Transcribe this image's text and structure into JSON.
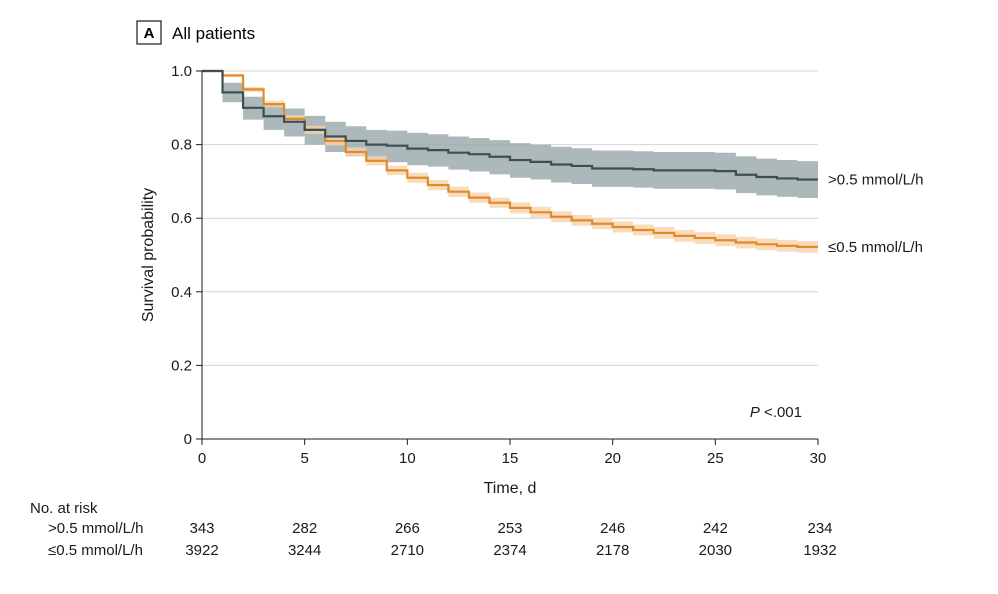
{
  "panel": {
    "letter": "A",
    "title": "All patients"
  },
  "chart_data": {
    "type": "line",
    "subtype": "kaplan-meier step",
    "xlabel": "Time, d",
    "ylabel": "Survival probability",
    "xlim": [
      0,
      30
    ],
    "ylim": [
      0,
      1.0
    ],
    "x_ticks": [
      0,
      5,
      10,
      15,
      20,
      25,
      30
    ],
    "x_tick_labels": [
      "0",
      "5",
      "10",
      "15",
      "20",
      "25",
      "30"
    ],
    "y_ticks": [
      0,
      0.2,
      0.4,
      0.6,
      0.8,
      1.0
    ],
    "y_tick_labels": [
      "0",
      "0.2",
      "0.4",
      "0.6",
      "0.8",
      "1.0"
    ],
    "grid": "horizontal",
    "annotation": {
      "italic": "P",
      "rest": " <.001"
    },
    "series": [
      {
        "name": ">0.5 mmol/L/h",
        "color": "#3d4f55",
        "band_color": "#9eabad",
        "x": [
          0,
          1,
          2,
          3,
          4,
          5,
          6,
          7,
          8,
          9,
          10,
          11,
          12,
          13,
          14,
          15,
          16,
          17,
          18,
          19,
          20,
          21,
          22,
          23,
          24,
          25,
          26,
          27,
          28,
          29,
          30
        ],
        "y": [
          1.0,
          0.942,
          0.9,
          0.877,
          0.862,
          0.84,
          0.822,
          0.81,
          0.8,
          0.797,
          0.789,
          0.785,
          0.778,
          0.774,
          0.767,
          0.758,
          0.753,
          0.746,
          0.742,
          0.735,
          0.735,
          0.733,
          0.73,
          0.73,
          0.73,
          0.728,
          0.718,
          0.712,
          0.708,
          0.705,
          0.705
        ],
        "lower": [
          1.0,
          0.915,
          0.868,
          0.84,
          0.822,
          0.8,
          0.78,
          0.768,
          0.757,
          0.752,
          0.744,
          0.74,
          0.732,
          0.727,
          0.719,
          0.71,
          0.705,
          0.697,
          0.693,
          0.685,
          0.685,
          0.683,
          0.68,
          0.68,
          0.68,
          0.678,
          0.668,
          0.662,
          0.658,
          0.655,
          0.655
        ],
        "upper": [
          1.0,
          0.968,
          0.93,
          0.91,
          0.898,
          0.878,
          0.862,
          0.85,
          0.84,
          0.838,
          0.832,
          0.828,
          0.822,
          0.818,
          0.812,
          0.804,
          0.8,
          0.794,
          0.79,
          0.784,
          0.784,
          0.782,
          0.78,
          0.78,
          0.78,
          0.778,
          0.768,
          0.762,
          0.758,
          0.755,
          0.755
        ],
        "end_label": ">0.5 mmol/L/h"
      },
      {
        "name": "≤0.5 mmol/L/h",
        "color": "#e08a2e",
        "band_color": "#f7d3aa",
        "x": [
          0,
          1,
          2,
          3,
          4,
          5,
          6,
          7,
          8,
          9,
          10,
          11,
          12,
          13,
          14,
          15,
          16,
          17,
          18,
          19,
          20,
          21,
          22,
          23,
          24,
          25,
          26,
          27,
          28,
          29,
          30
        ],
        "y": [
          1.0,
          0.988,
          0.95,
          0.91,
          0.87,
          0.84,
          0.81,
          0.78,
          0.756,
          0.73,
          0.71,
          0.69,
          0.672,
          0.656,
          0.642,
          0.628,
          0.616,
          0.604,
          0.594,
          0.585,
          0.576,
          0.568,
          0.56,
          0.552,
          0.546,
          0.54,
          0.534,
          0.529,
          0.525,
          0.522,
          0.522
        ],
        "lower": [
          1.0,
          0.984,
          0.943,
          0.901,
          0.86,
          0.829,
          0.798,
          0.768,
          0.743,
          0.717,
          0.696,
          0.676,
          0.658,
          0.642,
          0.628,
          0.613,
          0.601,
          0.589,
          0.579,
          0.57,
          0.561,
          0.553,
          0.544,
          0.536,
          0.53,
          0.524,
          0.518,
          0.513,
          0.509,
          0.506,
          0.506
        ],
        "upper": [
          1.0,
          0.992,
          0.957,
          0.919,
          0.88,
          0.851,
          0.822,
          0.792,
          0.769,
          0.743,
          0.724,
          0.704,
          0.686,
          0.67,
          0.656,
          0.643,
          0.631,
          0.619,
          0.609,
          0.6,
          0.591,
          0.583,
          0.576,
          0.568,
          0.562,
          0.556,
          0.55,
          0.545,
          0.541,
          0.538,
          0.538
        ],
        "end_label": "≤0.5 mmol/L/h"
      }
    ]
  },
  "risk_table": {
    "title": "No. at risk",
    "timepoints": [
      0,
      5,
      10,
      15,
      20,
      25,
      30
    ],
    "rows": [
      {
        "label": ">0.5 mmol/L/h",
        "values": [
          "343",
          "282",
          "266",
          "253",
          "246",
          "242",
          "234"
        ]
      },
      {
        "label": "≤0.5 mmol/L/h",
        "values": [
          "3922",
          "3244",
          "2710",
          "2374",
          "2178",
          "2030",
          "1932"
        ]
      }
    ]
  }
}
